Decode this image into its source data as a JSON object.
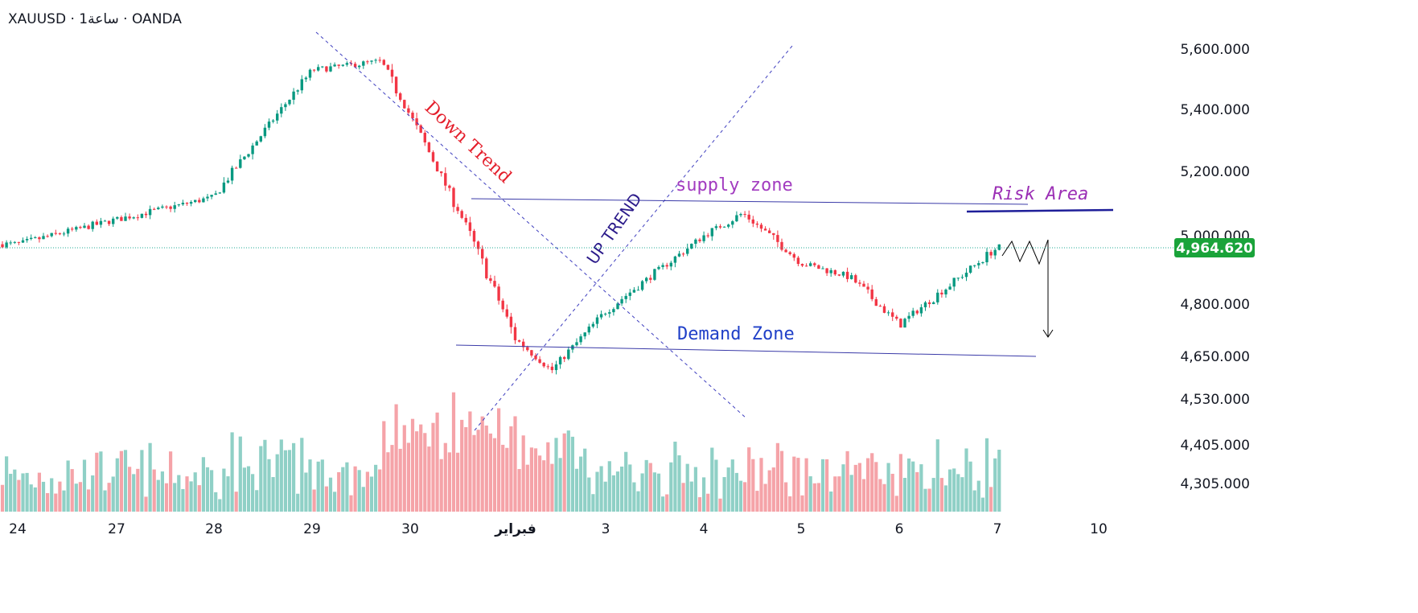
{
  "header": {
    "title": "XAUUSD · 1ساعة · OANDA"
  },
  "colors": {
    "up": "#089981",
    "down": "#f23645",
    "volume_up": "#8fd0c6",
    "volume_down": "#f5a3a8",
    "price_line": "#22ab94",
    "axis_text": "#131722"
  },
  "chart_data": {
    "type": "candlestick",
    "symbol": "XAUUSD",
    "timeframe": "1ساعة",
    "broker": "OANDA",
    "y_tick_labels": [
      "5,600.000",
      "5,400.000",
      "5,200.000",
      "5,000.000",
      "4,800.000",
      "4,650.000",
      "4,530.000",
      "4,405.000",
      "4,305.000"
    ],
    "x_tick_labels": [
      "24",
      "27",
      "28",
      "29",
      "30",
      "فبراير",
      "3",
      "4",
      "5",
      "6",
      "7",
      "10"
    ],
    "last_price": 4964.62,
    "last_price_label": "4,964.620",
    "price_path": [
      [
        "24",
        4975
      ],
      [
        "27",
        5050
      ],
      [
        "28",
        5120
      ],
      [
        "29",
        5530
      ],
      [
        "29.7",
        5560
      ],
      [
        "30",
        5380
      ],
      [
        "30.5",
        5050
      ],
      [
        "فبراير",
        4700
      ],
      [
        "فبراير+0.4",
        4610
      ],
      [
        "3",
        4780
      ],
      [
        "4",
        5000
      ],
      [
        "4.4",
        5070
      ],
      [
        "5",
        4920
      ],
      [
        "5.5",
        4880
      ],
      [
        "6",
        4740
      ],
      [
        "7",
        4965
      ]
    ],
    "annotations": [
      {
        "kind": "text",
        "label": "Down Trend"
      },
      {
        "kind": "text",
        "label": "UP TREND"
      },
      {
        "kind": "text",
        "label": "supply zone",
        "price": 5100
      },
      {
        "kind": "text",
        "label": "Demand Zone",
        "price": 4680
      },
      {
        "kind": "text",
        "label": "Risk Area"
      },
      {
        "kind": "projection",
        "from": 4964.62,
        "to": 4740
      }
    ],
    "grid": false,
    "legend": "none"
  }
}
